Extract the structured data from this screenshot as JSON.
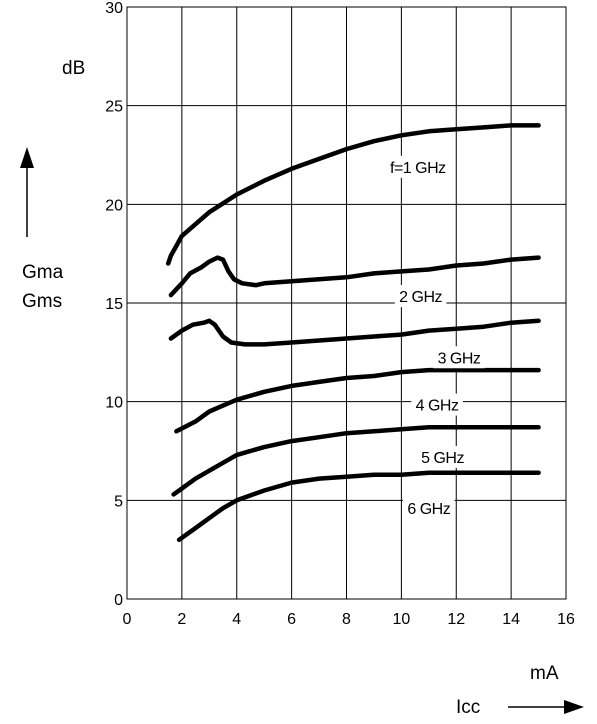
{
  "chart_data": {
    "type": "line",
    "xlabel": "Icc",
    "xunit": "mA",
    "ylabel_lines": [
      "Gma",
      "Gms"
    ],
    "yunit": "dB",
    "xlim": [
      0,
      16
    ],
    "ylim": [
      0,
      30
    ],
    "xticks": [
      0,
      2,
      4,
      6,
      8,
      10,
      12,
      14,
      16
    ],
    "yticks": [
      0,
      5,
      10,
      15,
      20,
      25,
      30
    ],
    "xtick_labels": [
      "0",
      "2",
      "4",
      "6",
      "8",
      "10",
      "12",
      "14",
      "16"
    ],
    "ytick_labels": [
      "0",
      "5",
      "10",
      "15",
      "20",
      "25",
      "30"
    ],
    "grid": true,
    "series": [
      {
        "name": "f=1 GHz",
        "points": [
          [
            1.5,
            17.0
          ],
          [
            1.6,
            17.4
          ],
          [
            1.8,
            17.9
          ],
          [
            2.0,
            18.4
          ],
          [
            2.5,
            19.0
          ],
          [
            3.0,
            19.6
          ],
          [
            4.0,
            20.5
          ],
          [
            5.0,
            21.2
          ],
          [
            6.0,
            21.8
          ],
          [
            7.0,
            22.3
          ],
          [
            8.0,
            22.8
          ],
          [
            9.0,
            23.2
          ],
          [
            10.0,
            23.5
          ],
          [
            11.0,
            23.7
          ],
          [
            12.0,
            23.8
          ],
          [
            13.0,
            23.9
          ],
          [
            14.0,
            24.0
          ],
          [
            15.0,
            24.0
          ]
        ]
      },
      {
        "name": "2 GHz",
        "points": [
          [
            1.6,
            15.4
          ],
          [
            1.8,
            15.7
          ],
          [
            2.0,
            16.0
          ],
          [
            2.3,
            16.5
          ],
          [
            2.7,
            16.8
          ],
          [
            3.0,
            17.1
          ],
          [
            3.3,
            17.3
          ],
          [
            3.5,
            17.2
          ],
          [
            3.7,
            16.6
          ],
          [
            3.9,
            16.2
          ],
          [
            4.2,
            16.0
          ],
          [
            4.7,
            15.9
          ],
          [
            5.0,
            16.0
          ],
          [
            6.0,
            16.1
          ],
          [
            7.0,
            16.2
          ],
          [
            8.0,
            16.3
          ],
          [
            9.0,
            16.5
          ],
          [
            10.0,
            16.6
          ],
          [
            11.0,
            16.7
          ],
          [
            12.0,
            16.9
          ],
          [
            13.0,
            17.0
          ],
          [
            14.0,
            17.2
          ],
          [
            15.0,
            17.3
          ]
        ]
      },
      {
        "name": "3 GHz",
        "points": [
          [
            1.6,
            13.2
          ],
          [
            2.0,
            13.6
          ],
          [
            2.4,
            13.9
          ],
          [
            2.8,
            14.0
          ],
          [
            3.0,
            14.1
          ],
          [
            3.2,
            13.9
          ],
          [
            3.5,
            13.3
          ],
          [
            3.8,
            13.0
          ],
          [
            4.3,
            12.9
          ],
          [
            5.0,
            12.9
          ],
          [
            6.0,
            13.0
          ],
          [
            7.0,
            13.1
          ],
          [
            8.0,
            13.2
          ],
          [
            9.0,
            13.3
          ],
          [
            10.0,
            13.4
          ],
          [
            11.0,
            13.6
          ],
          [
            12.0,
            13.7
          ],
          [
            13.0,
            13.8
          ],
          [
            14.0,
            14.0
          ],
          [
            15.0,
            14.1
          ]
        ]
      },
      {
        "name": "4 GHz",
        "points": [
          [
            1.8,
            8.5
          ],
          [
            2.5,
            9.0
          ],
          [
            3.0,
            9.5
          ],
          [
            3.5,
            9.8
          ],
          [
            4.0,
            10.1
          ],
          [
            5.0,
            10.5
          ],
          [
            6.0,
            10.8
          ],
          [
            7.0,
            11.0
          ],
          [
            8.0,
            11.2
          ],
          [
            9.0,
            11.3
          ],
          [
            10.0,
            11.5
          ],
          [
            11.0,
            11.6
          ],
          [
            12.0,
            11.6
          ],
          [
            13.0,
            11.6
          ],
          [
            15.0,
            11.6
          ]
        ]
      },
      {
        "name": "5 GHz",
        "points": [
          [
            1.7,
            5.3
          ],
          [
            2.0,
            5.6
          ],
          [
            2.5,
            6.1
          ],
          [
            3.0,
            6.5
          ],
          [
            3.5,
            6.9
          ],
          [
            4.0,
            7.3
          ],
          [
            5.0,
            7.7
          ],
          [
            6.0,
            8.0
          ],
          [
            7.0,
            8.2
          ],
          [
            8.0,
            8.4
          ],
          [
            9.0,
            8.5
          ],
          [
            10.0,
            8.6
          ],
          [
            11.0,
            8.7
          ],
          [
            12.0,
            8.7
          ],
          [
            13.0,
            8.7
          ],
          [
            15.0,
            8.7
          ]
        ]
      },
      {
        "name": "6 GHz",
        "points": [
          [
            1.9,
            3.0
          ],
          [
            2.5,
            3.6
          ],
          [
            3.0,
            4.1
          ],
          [
            3.5,
            4.6
          ],
          [
            4.0,
            5.0
          ],
          [
            5.0,
            5.5
          ],
          [
            6.0,
            5.9
          ],
          [
            7.0,
            6.1
          ],
          [
            8.0,
            6.2
          ],
          [
            9.0,
            6.3
          ],
          [
            10.0,
            6.3
          ],
          [
            11.0,
            6.4
          ],
          [
            12.0,
            6.4
          ],
          [
            13.0,
            6.4
          ],
          [
            14.0,
            6.4
          ],
          [
            15.0,
            6.4
          ]
        ]
      }
    ],
    "series_labels": [
      {
        "text": "f=1 GHz",
        "x": 10.6,
        "y": 21.9
      },
      {
        "text": "2 GHz",
        "x": 10.7,
        "y": 15.35
      },
      {
        "text": "3 GHz",
        "x": 12.1,
        "y": 12.25
      },
      {
        "text": "4 GHz",
        "x": 11.3,
        "y": 9.85
      },
      {
        "text": "5 GHz",
        "x": 11.5,
        "y": 7.2
      },
      {
        "text": "6 GHz",
        "x": 11.0,
        "y": 4.6
      }
    ]
  }
}
